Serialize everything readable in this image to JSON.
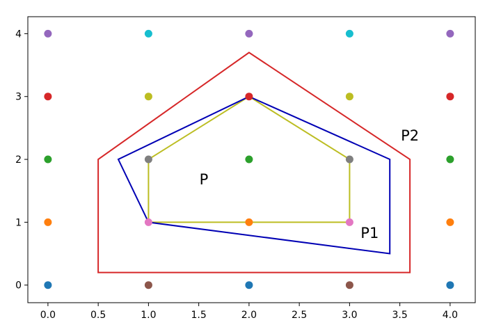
{
  "chart_data": {
    "type": "scatter",
    "title": "",
    "xlabel": "",
    "ylabel": "",
    "xlim": [
      -0.2,
      4.25
    ],
    "ylim": [
      -0.28,
      4.27
    ],
    "grid": false,
    "legend": "none",
    "x_ticks": [
      "0.0",
      "0.5",
      "1.0",
      "1.5",
      "2.0",
      "2.5",
      "3.0",
      "3.5",
      "4.0"
    ],
    "x_tick_values": [
      0,
      0.5,
      1,
      1.5,
      2,
      2.5,
      3,
      3.5,
      4
    ],
    "y_ticks": [
      "0",
      "1",
      "2",
      "3",
      "4"
    ],
    "y_tick_values": [
      0,
      1,
      2,
      3,
      4
    ],
    "points": [
      {
        "x": 0,
        "y": 0,
        "color": "#1f77b4"
      },
      {
        "x": 0,
        "y": 1,
        "color": "#ff7f0e"
      },
      {
        "x": 0,
        "y": 2,
        "color": "#2ca02c"
      },
      {
        "x": 0,
        "y": 3,
        "color": "#d62728"
      },
      {
        "x": 0,
        "y": 4,
        "color": "#9467bd"
      },
      {
        "x": 1,
        "y": 0,
        "color": "#8c564b"
      },
      {
        "x": 1,
        "y": 1,
        "color": "#e377c2"
      },
      {
        "x": 1,
        "y": 2,
        "color": "#7f7f7f"
      },
      {
        "x": 1,
        "y": 3,
        "color": "#bcbd22"
      },
      {
        "x": 1,
        "y": 4,
        "color": "#17becf"
      },
      {
        "x": 2,
        "y": 0,
        "color": "#1f77b4"
      },
      {
        "x": 2,
        "y": 1,
        "color": "#ff7f0e"
      },
      {
        "x": 2,
        "y": 2,
        "color": "#2ca02c"
      },
      {
        "x": 2,
        "y": 3,
        "color": "#d62728"
      },
      {
        "x": 2,
        "y": 4,
        "color": "#9467bd"
      },
      {
        "x": 3,
        "y": 0,
        "color": "#8c564b"
      },
      {
        "x": 3,
        "y": 1,
        "color": "#e377c2"
      },
      {
        "x": 3,
        "y": 2,
        "color": "#7f7f7f"
      },
      {
        "x": 3,
        "y": 3,
        "color": "#bcbd22"
      },
      {
        "x": 3,
        "y": 4,
        "color": "#17becf"
      },
      {
        "x": 4,
        "y": 0,
        "color": "#1f77b4"
      },
      {
        "x": 4,
        "y": 1,
        "color": "#ff7f0e"
      },
      {
        "x": 4,
        "y": 2,
        "color": "#2ca02c"
      },
      {
        "x": 4,
        "y": 3,
        "color": "#d62728"
      },
      {
        "x": 4,
        "y": 4,
        "color": "#9467bd"
      }
    ],
    "polygons": [
      {
        "name": "P",
        "color": "#bcbd22",
        "vertices": [
          [
            1,
            1
          ],
          [
            1,
            2
          ],
          [
            2,
            3
          ],
          [
            3,
            2
          ],
          [
            3,
            1
          ]
        ],
        "label_pos": [
          1.55,
          1.6
        ]
      },
      {
        "name": "P1",
        "color": "#0000b4",
        "vertices": [
          [
            1,
            1
          ],
          [
            0.7,
            2
          ],
          [
            2,
            3
          ],
          [
            3.4,
            2
          ],
          [
            3.4,
            0.5
          ]
        ],
        "label_pos": [
          3.2,
          0.75
        ]
      },
      {
        "name": "P2",
        "color": "#d62728",
        "vertices": [
          [
            0.5,
            0.2
          ],
          [
            0.5,
            2
          ],
          [
            2,
            3.7
          ],
          [
            3.6,
            2
          ],
          [
            3.6,
            0.2
          ]
        ],
        "label_pos": [
          3.6,
          2.3
        ]
      }
    ]
  }
}
